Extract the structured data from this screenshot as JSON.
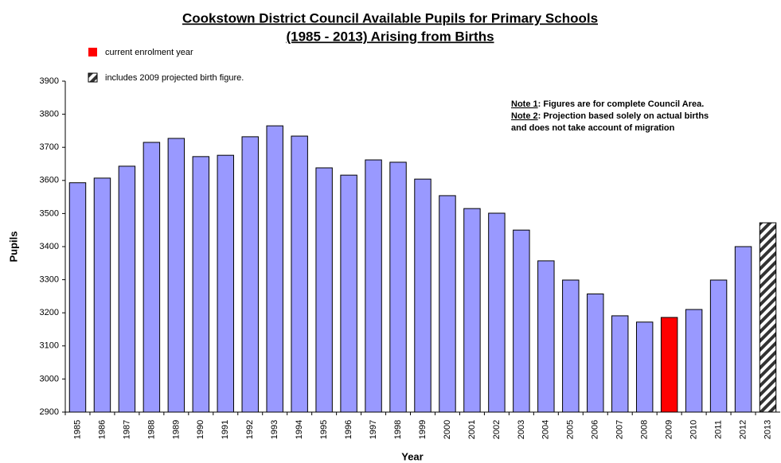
{
  "chart_data": {
    "type": "bar",
    "title": [
      "Cookstown District Council Available Pupils for Primary Schools",
      "(1985 - 2013) Arising from Births"
    ],
    "x_label": "Year",
    "y_label": "Pupils",
    "categories": [
      "1985",
      "1986",
      "1987",
      "1988",
      "1989",
      "1990",
      "1991",
      "1992",
      "1993",
      "1994",
      "1995",
      "1996",
      "1997",
      "1998",
      "1999",
      "2000",
      "2001",
      "2002",
      "2003",
      "2004",
      "2005",
      "2006",
      "2007",
      "2008",
      "2009",
      "2010",
      "2011",
      "2012",
      "2013"
    ],
    "values": [
      3593,
      3607,
      3643,
      3715,
      3727,
      3672,
      3676,
      3732,
      3765,
      3734,
      3638,
      3616,
      3662,
      3655,
      3604,
      3554,
      3515,
      3501,
      3450,
      3357,
      3299,
      3257,
      3191,
      3172,
      3186,
      3210,
      3299,
      3400,
      3472
    ],
    "colors": [
      "#9999ff",
      "#9999ff",
      "#9999ff",
      "#9999ff",
      "#9999ff",
      "#9999ff",
      "#9999ff",
      "#9999ff",
      "#9999ff",
      "#9999ff",
      "#9999ff",
      "#9999ff",
      "#9999ff",
      "#9999ff",
      "#9999ff",
      "#9999ff",
      "#9999ff",
      "#9999ff",
      "#9999ff",
      "#9999ff",
      "#9999ff",
      "#9999ff",
      "#9999ff",
      "#9999ff",
      "#ff0000",
      "#9999ff",
      "#9999ff",
      "#9999ff",
      "hatch"
    ],
    "ylim": [
      2900,
      3900
    ],
    "yticks": [
      2900,
      3000,
      3100,
      3200,
      3300,
      3400,
      3500,
      3600,
      3700,
      3800,
      3900
    ],
    "legend": [
      {
        "label": "current enrolment year",
        "color": "#ff0000"
      },
      {
        "label": "includes 2009 projected birth figure.",
        "color": "hatch"
      }
    ],
    "notes": [
      {
        "label": "Note 1",
        "text": ": Figures are for complete Council Area."
      },
      {
        "label": "Note 2",
        "text": ": Projection based solely on actual births"
      },
      {
        "text": "and does not take account of migration"
      }
    ]
  }
}
